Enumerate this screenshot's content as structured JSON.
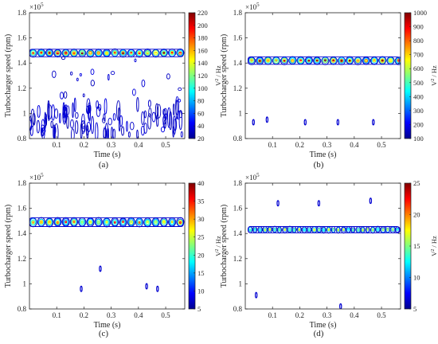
{
  "chart_data": [
    {
      "panel_label": "(a)",
      "type": "contour",
      "xlabel": "Time (s)",
      "ylabel": "Turbocharger speed (rpm)",
      "y_exponent": "×10^5",
      "colorbar_label": "V^2 / Hz",
      "xlim": [
        0,
        0.57
      ],
      "ylim": [
        0.8,
        1.8
      ],
      "x_ticks": [
        "0.1",
        "0.2",
        "0.3",
        "0.4",
        "0.5"
      ],
      "y_ticks": [
        "0.8",
        "1",
        "1.2",
        "1.4",
        "1.6",
        "1.8"
      ],
      "colorbar_range": [
        20,
        220
      ],
      "colorbar_ticks": [
        "20",
        "40",
        "60",
        "80",
        "100",
        "120",
        "140",
        "160",
        "180",
        "200",
        "220"
      ],
      "band": {
        "y_center": 1.48,
        "y_halfwidth": 0.03,
        "x_start": 0.0,
        "x_end": 0.565,
        "peak": 220
      },
      "scatter_regions": [
        {
          "x_start": 0.0,
          "x_end": 0.56,
          "y_min": 0.83,
          "y_max": 1.08,
          "density": "high",
          "level": 30
        },
        {
          "x_start": 0.05,
          "x_end": 0.56,
          "y_min": 1.1,
          "y_max": 1.45,
          "density": "low",
          "level": 30
        }
      ]
    },
    {
      "panel_label": "(b)",
      "type": "contour",
      "xlabel": "Time (s)",
      "ylabel": "Turbocharger speed (rpm)",
      "y_exponent": "×10^5",
      "colorbar_label": "V^2 / Hz",
      "xlim": [
        0,
        0.57
      ],
      "ylim": [
        0.8,
        1.8
      ],
      "x_ticks": [
        "0.1",
        "0.2",
        "0.3",
        "0.4",
        "0.5"
      ],
      "y_ticks": [
        "0.8",
        "1",
        "1.2",
        "1.4",
        "1.6",
        "1.8"
      ],
      "colorbar_range": [
        100,
        1000
      ],
      "colorbar_ticks": [
        "100",
        "200",
        "300",
        "400",
        "500",
        "600",
        "700",
        "800",
        "900",
        "1000"
      ],
      "band": {
        "y_center": 1.42,
        "y_halfwidth": 0.03,
        "x_start": 0.01,
        "x_end": 0.565,
        "peak": 1000
      },
      "blips": [
        {
          "x": 0.03,
          "y": 0.93
        },
        {
          "x": 0.08,
          "y": 0.95
        },
        {
          "x": 0.22,
          "y": 0.93
        },
        {
          "x": 0.34,
          "y": 0.93
        },
        {
          "x": 0.47,
          "y": 0.93
        }
      ]
    },
    {
      "panel_label": "(c)",
      "type": "contour",
      "xlabel": "Time (s)",
      "ylabel": "Turbocharger speed (rpm)",
      "y_exponent": "×10^5",
      "colorbar_label": "V^2 / Hz",
      "xlim": [
        0,
        0.57
      ],
      "ylim": [
        0.8,
        1.8
      ],
      "x_ticks": [
        "0.1",
        "0.2",
        "0.3",
        "0.4",
        "0.5"
      ],
      "y_ticks": [
        "0.8",
        "1",
        "1.2",
        "1.4",
        "1.6",
        "1.8"
      ],
      "colorbar_range": [
        5,
        40
      ],
      "colorbar_ticks": [
        "5",
        "10",
        "15",
        "20",
        "25",
        "30",
        "35",
        "40"
      ],
      "band": {
        "y_center": 1.49,
        "y_halfwidth": 0.035,
        "x_start": 0.0,
        "x_end": 0.565,
        "peak": 34
      },
      "blips": [
        {
          "x": 0.19,
          "y": 0.96
        },
        {
          "x": 0.26,
          "y": 1.12
        },
        {
          "x": 0.43,
          "y": 0.98
        },
        {
          "x": 0.47,
          "y": 0.96
        }
      ]
    },
    {
      "panel_label": "(d)",
      "type": "contour",
      "xlabel": "Time (s)",
      "ylabel": "Turbocharger speed (rpm)",
      "y_exponent": "×10^5",
      "colorbar_label": "V^2 / Hz",
      "xlim": [
        0,
        0.57
      ],
      "ylim": [
        0.8,
        1.8
      ],
      "x_ticks": [
        "0.1",
        "0.2",
        "0.3",
        "0.4",
        "0.5"
      ],
      "y_ticks": [
        "0.8",
        "1",
        "1.2",
        "1.4",
        "1.6",
        "1.8"
      ],
      "colorbar_range": [
        5,
        25
      ],
      "colorbar_ticks": [
        "5",
        "10",
        "15",
        "20",
        "25"
      ],
      "band": {
        "y_center": 1.43,
        "y_halfwidth": 0.025,
        "x_start": 0.01,
        "x_end": 0.565,
        "peak": 16,
        "broken": true
      },
      "blips": [
        {
          "x": 0.04,
          "y": 0.91
        },
        {
          "x": 0.12,
          "y": 1.64
        },
        {
          "x": 0.27,
          "y": 1.64
        },
        {
          "x": 0.35,
          "y": 0.82
        },
        {
          "x": 0.46,
          "y": 1.66
        }
      ]
    }
  ]
}
